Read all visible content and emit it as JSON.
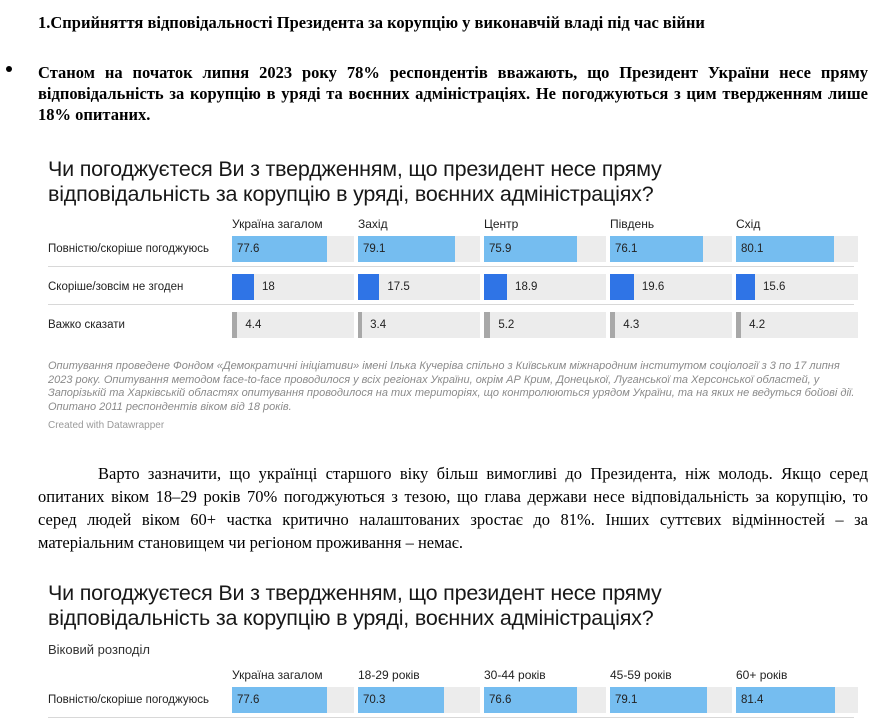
{
  "heading": "1.Сприйняття відповідальності Президента за корупцію у виконавчій владі під час війни",
  "bullet": "Станом на початок липня 2023 року 78% респондентів вважають, що Президент України несе пряму відповідальність за корупцію в уряді та воєнних адміністраціях. Не погоджуються з цим твердженням лише 18% опитаних.",
  "paragraph": "Варто зазначити, що українці старшого віку більш вимогливі до Президента, ніж молодь. Якщо серед опитаних віком 18–29 років 70% погоджуються з тезою, що  глава держави несе відповідальність за корупцію, то серед людей віком 60+ частка критично налаштованих зростає до 81%. Інших суттєвих відмінностей – за матеріальним становищем чи регіоном проживання – немає.",
  "chart1": {
    "title_line1": "Чи погоджуєтеся Ви з твердженням, що президент несе пряму",
    "title_line2": "відповідальність за корупцію в уряді, воєнних адміністраціях?",
    "note": "Опитування проведене Фондом «Демократичні ініціативи» імені Ілька Кучеріва спільно з Київським міжнародним інститутом соціології з 3 по 17 липня 2023 року. Опитування методом face-to-face проводилося у всіх регіонах України, окрім АР Крим, Донецької, Луганської та Херсонської областей, у Запорізькій та Харківській областях опитування проводилося на тих територіях, що контролюються урядом України, та на яких не ведуться бойові дії. Опитано 2011 респондентів віком від 18 років.",
    "credit": "Created with Datawrapper"
  },
  "chart2": {
    "title_line1": "Чи погоджуєтеся Ви з твердженням, що президент несе пряму",
    "title_line2": "відповідальність за корупцію в уряді, воєнних адміністраціях?",
    "subtitle": "Віковий розподіл"
  },
  "colors": {
    "agree": "#75bdf0",
    "disagree": "#2f74e6",
    "hard": "#a8a8a8",
    "cell_bg": "#ececec"
  },
  "chart_data": [
    {
      "type": "table",
      "title": "Чи погоджуєтеся Ви з твердженням, що президент несе пряму відповідальність за корупцію в уряді, воєнних адміністраціях?",
      "columns": [
        "Україна загалом",
        "Захід",
        "Центр",
        "Південь",
        "Схід"
      ],
      "rows": [
        {
          "label": "Повністю/скоріше погоджуюсь",
          "color_key": "agree",
          "values": [
            77.6,
            79.1,
            75.9,
            76.1,
            80.1
          ],
          "labels": [
            "77.6",
            "79.1",
            "75.9",
            "76.1",
            "80.1"
          ]
        },
        {
          "label": "Скоріше/зовсім не згоден",
          "color_key": "disagree",
          "values": [
            18,
            17.5,
            18.9,
            19.6,
            15.6
          ],
          "labels": [
            "18",
            "17.5",
            "18.9",
            "19.6",
            "15.6"
          ]
        },
        {
          "label": "Важко сказати",
          "color_key": "hard",
          "values": [
            4.4,
            3.4,
            5.2,
            4.3,
            4.2
          ],
          "labels": [
            "4.4",
            "3.4",
            "5.2",
            "4.3",
            "4.2"
          ]
        }
      ],
      "ylim": [
        0,
        100
      ]
    },
    {
      "type": "table",
      "title": "Чи погоджуєтеся Ви з твердженням, що президент несе пряму відповідальність за корупцію в уряді, воєнних адміністраціях?",
      "subtitle": "Віковий розподіл",
      "columns": [
        "Україна загалом",
        "18-29 років",
        "30-44 років",
        "45-59 років",
        "60+ років"
      ],
      "rows": [
        {
          "label": "Повністю/скоріше погоджуюсь",
          "color_key": "agree",
          "values": [
            77.6,
            70.3,
            76.6,
            79.1,
            81.4
          ],
          "labels": [
            "77.6",
            "70.3",
            "76.6",
            "79.1",
            "81.4"
          ]
        }
      ],
      "ylim": [
        0,
        100
      ]
    }
  ]
}
